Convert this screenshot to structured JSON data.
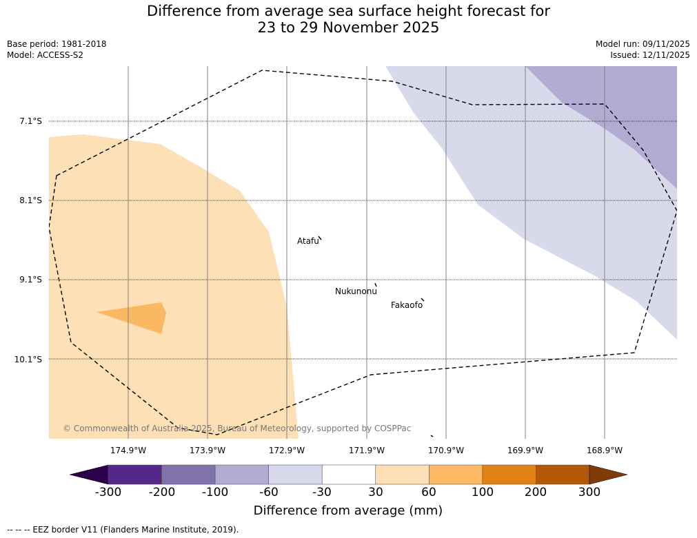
{
  "title": {
    "line1": "Difference from average sea surface height forecast for",
    "line2": "23 to 29 November 2025"
  },
  "meta": {
    "base_period": "Base period: 1981-2018",
    "model": "Model: ACCESS-S2",
    "model_run": "Model run: 09/11/2025",
    "issued": "Issued: 12/11/2025"
  },
  "map": {
    "latitudes": [
      "7.1°S",
      "8.1°S",
      "9.1°S",
      "10.1°S"
    ],
    "longitudes": [
      "174.9°W",
      "173.9°W",
      "172.9°W",
      "171.9°W",
      "170.9°W",
      "169.9°W",
      "168.9°W"
    ],
    "places": {
      "atafu": "Atafu",
      "nukunonu": "Nukunonu",
      "fakaofo": "Fakaofo"
    },
    "copyright": "© Commonwealth of Australia 2025, Bureau of Meteorology, supported by COSPPac"
  },
  "colorbar": {
    "label": "Difference from average (mm)",
    "ticks": [
      "-300",
      "-200",
      "-100",
      "-60",
      "-30",
      "30",
      "60",
      "100",
      "200",
      "300"
    ],
    "colors": {
      "below_min": "#2d004b",
      "bins": [
        "#542788",
        "#8073ac",
        "#b2abd2",
        "#d8daeb",
        "#ffffff",
        "#fee0b6",
        "#fdb863",
        "#e08214",
        "#b35806"
      ],
      "above_max": "#7f3b08"
    }
  },
  "footnote": "--  --  -- EEZ border V11 (Flanders Marine Institute, 2019)."
}
